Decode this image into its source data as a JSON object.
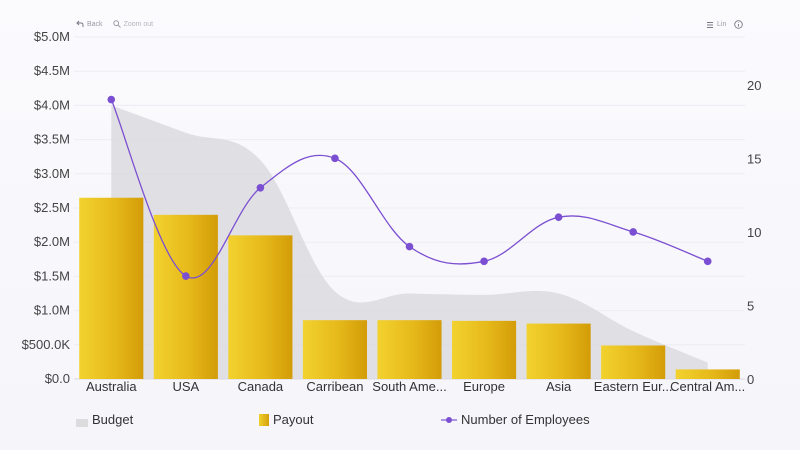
{
  "toolbar": {
    "back_label": "Back",
    "zoom_out_label": "Zoom out",
    "scale_label": "Lin",
    "back_icon": "back-arrow-icon",
    "zoom_icon": "magnifier-icon",
    "list_icon": "list-icon",
    "info_icon": "info-icon"
  },
  "colors": {
    "budget": "#dcdbdf",
    "payout_light": "#f0cf2e",
    "payout_dark": "#d6a20c",
    "employees": "#7b4fd1"
  },
  "chart_data": {
    "type": "bar",
    "categories": [
      "Australia",
      "USA",
      "Canada",
      "Carribean",
      "South Ame...",
      "Europe",
      "Asia",
      "Eastern Eur...",
      "Central Am..."
    ],
    "series": [
      {
        "name": "Budget",
        "type": "area",
        "axis": "left",
        "values": [
          4000000,
          3600000,
          3200000,
          1280000,
          1250000,
          1230000,
          1250000,
          700000,
          240000
        ]
      },
      {
        "name": "Payout",
        "type": "bar",
        "axis": "left",
        "values": [
          2650000,
          2400000,
          2100000,
          860000,
          860000,
          850000,
          810000,
          490000,
          140000
        ]
      },
      {
        "name": "Number of Employees",
        "type": "line",
        "axis": "right",
        "values": [
          19,
          7,
          13,
          15,
          9,
          8,
          11,
          10,
          8
        ]
      }
    ],
    "y_left": {
      "min": 0,
      "max": 5000000,
      "ticks": [
        "$0.0",
        "$500.0K",
        "$1.0M",
        "$1.5M",
        "$2.0M",
        "$2.5M",
        "$3.0M",
        "$3.5M",
        "$4.0M",
        "$4.5M",
        "$5.0M"
      ]
    },
    "y_right": {
      "min": 0,
      "max": 23.25,
      "ticks": [
        "0",
        "5",
        "10",
        "15",
        "20"
      ],
      "tick_values": [
        0,
        5,
        10,
        15,
        20
      ]
    },
    "legend": [
      "Budget",
      "Payout",
      "Number of Employees"
    ],
    "legend_position": "bottom",
    "grid": true
  }
}
